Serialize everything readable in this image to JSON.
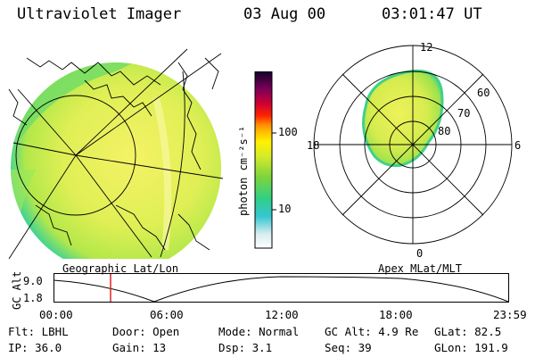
{
  "header": {
    "title": "Ultraviolet Imager",
    "date": "03 Aug 00",
    "time": "03:01:47 UT"
  },
  "colorbar": {
    "unit_label": "photon cm⁻²s⁻¹",
    "tick_100": "100",
    "tick_10": "10"
  },
  "globe": {
    "caption": "Geographic Lat/Lon"
  },
  "polar": {
    "caption": "Apex MLat/MLT",
    "mlt_12": "12",
    "mlt_18": "18",
    "mlt_6": "6",
    "mlt_0": "0",
    "lat_60": "60",
    "lat_70": "70",
    "lat_80": "80"
  },
  "altplot": {
    "ylabel": "GC Alt",
    "y_top": "9.0",
    "y_bottom": "1.8",
    "x_ticks": [
      "00:00",
      "06:00",
      "12:00",
      "18:00",
      "23:59"
    ],
    "marker_time": "03:01:47",
    "colors": {
      "marker": "#dd2222",
      "curve": "#000000"
    }
  },
  "footer": {
    "filter": "Flt: LBHL",
    "door": "Door: Open",
    "mode": "Mode: Normal",
    "gc_alt": "GC Alt: 4.9 Re",
    "glat": "GLat:  82.5",
    "ip": "IP: 36.0",
    "gain": "Gain: 13",
    "dsp": "Dsp:     3.1",
    "seq": "Seq: 39",
    "glon": "GLon: 191.9"
  }
}
